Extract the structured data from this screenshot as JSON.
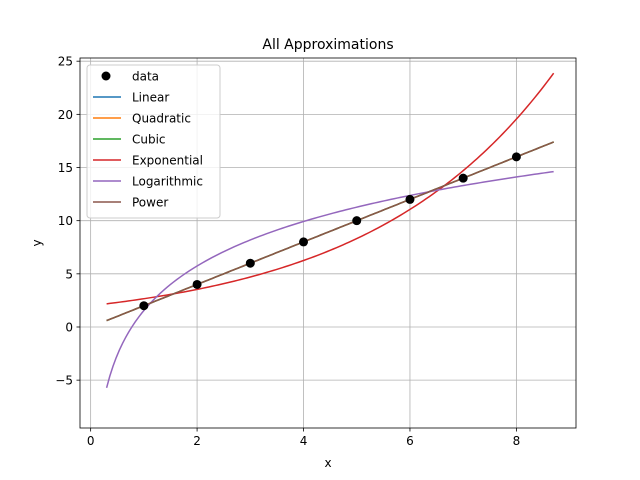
{
  "chart_data": {
    "type": "line",
    "title": "All Approximations",
    "xlabel": "x",
    "ylabel": "y",
    "xlim": [
      -0.2,
      9.12
    ],
    "ylim": [
      -9.5,
      25.3
    ],
    "x_ticks": [
      0,
      2,
      4,
      6,
      8
    ],
    "y_ticks": [
      -5,
      0,
      5,
      10,
      15,
      20,
      25
    ],
    "y_tick_labels": [
      "−5",
      "0",
      "5",
      "10",
      "15",
      "20",
      "25"
    ],
    "grid": true,
    "legend_position": "upper left",
    "scatter": {
      "name": "data",
      "color": "#000000",
      "x": [
        1,
        2,
        3,
        4,
        5,
        6,
        7,
        8
      ],
      "y": [
        2,
        4,
        6,
        8,
        10,
        12,
        14,
        16
      ]
    },
    "series": [
      {
        "name": "Linear",
        "color": "#1f77b4",
        "model": "linear",
        "params": {
          "a": 2,
          "b": 0
        },
        "x_range": [
          0.3,
          8.7
        ]
      },
      {
        "name": "Quadratic",
        "color": "#ff7f0e",
        "model": "linear",
        "params": {
          "a": 2,
          "b": 0
        },
        "x_range": [
          0.3,
          8.7
        ]
      },
      {
        "name": "Cubic",
        "color": "#2ca02c",
        "model": "linear",
        "params": {
          "a": 2,
          "b": 0
        },
        "x_range": [
          0.3,
          8.7
        ]
      },
      {
        "name": "Exponential",
        "color": "#d62728",
        "model": "exponential",
        "params": {
          "a": 2.0,
          "b": 0.285
        },
        "x_range": [
          0.3,
          8.7
        ]
      },
      {
        "name": "Logarithmic",
        "color": "#9467bd",
        "model": "logarithmic",
        "params": {
          "a": 6.04,
          "b": 1.55
        },
        "x_range": [
          0.3,
          8.7
        ]
      },
      {
        "name": "Power",
        "color": "#8c564b",
        "model": "power",
        "params": {
          "a": 2,
          "b": 1
        },
        "x_range": [
          0.3,
          8.7
        ]
      }
    ]
  }
}
